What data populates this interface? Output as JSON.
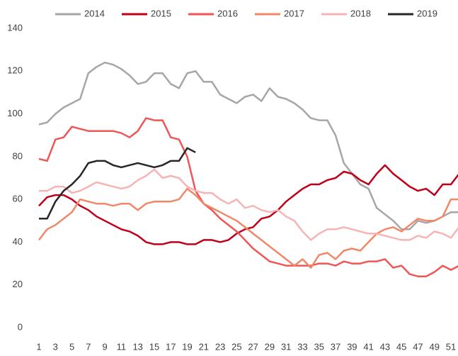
{
  "chart_data": {
    "type": "line",
    "categories": [
      1,
      null,
      3,
      null,
      5,
      null,
      7,
      null,
      9,
      null,
      11,
      null,
      13,
      null,
      15,
      null,
      17,
      null,
      19,
      null,
      21,
      null,
      23,
      null,
      25,
      null,
      27,
      null,
      29,
      null,
      31,
      null,
      33,
      null,
      35,
      null,
      37,
      null,
      39,
      null,
      41,
      null,
      43,
      null,
      45,
      null,
      47,
      null,
      49,
      null,
      51,
      null
    ],
    "ylim": [
      0,
      140
    ],
    "yticks": [
      0,
      20,
      40,
      60,
      80,
      100,
      120,
      140
    ],
    "grid": false,
    "legend": "top",
    "series": [
      {
        "name": "2014",
        "color": "#a6a6a6",
        "values": [
          95,
          96,
          100,
          103,
          105,
          107,
          119,
          122,
          124,
          123,
          121,
          118,
          114,
          115,
          119,
          119,
          114,
          112,
          119,
          120,
          115,
          115,
          109,
          107,
          105,
          108,
          109,
          106,
          112,
          108,
          107,
          105,
          102,
          98,
          97,
          97,
          90,
          77,
          72,
          67,
          65,
          56,
          53,
          50,
          46,
          46,
          50,
          49,
          50,
          52,
          54,
          54
        ]
      },
      {
        "name": "2015",
        "color": "#c00018",
        "values": [
          57,
          61,
          62,
          62,
          60,
          57,
          55,
          52,
          50,
          48,
          46,
          45,
          43,
          40,
          39,
          39,
          40,
          40,
          39,
          39,
          41,
          41,
          40,
          41,
          44,
          46,
          47,
          51,
          52,
          55,
          59,
          62,
          65,
          67,
          67,
          69,
          70,
          73,
          72,
          69,
          67,
          72,
          76,
          72,
          69,
          66,
          64,
          65,
          62,
          67,
          67,
          72
        ]
      },
      {
        "name": "2016",
        "color": "#f05656",
        "values": [
          79,
          78,
          88,
          89,
          94,
          93,
          92,
          92,
          92,
          92,
          91,
          89,
          92,
          98,
          97,
          97,
          89,
          88,
          80,
          64,
          58,
          55,
          51,
          48,
          45,
          41,
          37,
          34,
          31,
          30,
          29,
          29,
          29,
          29,
          30,
          30,
          29,
          31,
          30,
          30,
          31,
          31,
          32,
          28,
          29,
          25,
          24,
          24,
          26,
          29,
          27,
          29
        ]
      },
      {
        "name": "2017",
        "color": "#f08868",
        "values": [
          41,
          46,
          48,
          51,
          54,
          60,
          59,
          58,
          58,
          57,
          58,
          58,
          55,
          58,
          59,
          59,
          59,
          60,
          65,
          62,
          58,
          56,
          54,
          52,
          50,
          47,
          44,
          41,
          38,
          35,
          32,
          29,
          32,
          28,
          34,
          35,
          32,
          36,
          37,
          36,
          40,
          44,
          46,
          47,
          45,
          48,
          51,
          50,
          50,
          52,
          60,
          60
        ]
      },
      {
        "name": "2018",
        "color": "#f6b4b4",
        "values": [
          64,
          64,
          66,
          66,
          63,
          64,
          66,
          68,
          67,
          66,
          65,
          66,
          69,
          71,
          74,
          70,
          71,
          70,
          66,
          64,
          63,
          63,
          60,
          58,
          60,
          56,
          57,
          55,
          54,
          55,
          52,
          50,
          45,
          41,
          44,
          46,
          46,
          47,
          46,
          45,
          44,
          44,
          43,
          42,
          41,
          41,
          43,
          42,
          45,
          44,
          42,
          47
        ]
      },
      {
        "name": "2019",
        "color": "#262626",
        "values": [
          51,
          51,
          59,
          64,
          67,
          71,
          77,
          78,
          78,
          76,
          75,
          76,
          77,
          76,
          75,
          76,
          78,
          78,
          84,
          82,
          null,
          null,
          null,
          null,
          null,
          null,
          null,
          null,
          null,
          null,
          null,
          null,
          null,
          null,
          null,
          null,
          null,
          null,
          null,
          null,
          null,
          null,
          null,
          null,
          null,
          null,
          null,
          null,
          null,
          null,
          null,
          null
        ]
      }
    ]
  }
}
